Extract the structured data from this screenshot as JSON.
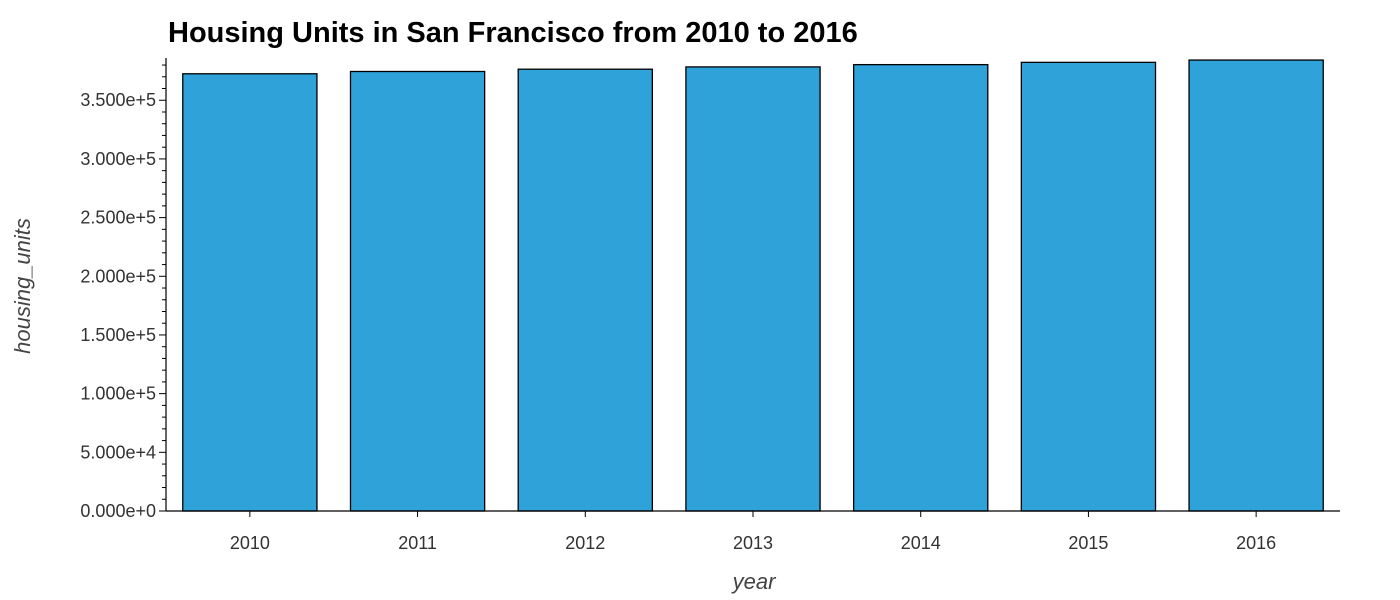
{
  "chart_data": {
    "type": "bar",
    "title": "Housing Units in San Francisco from 2010 to 2016",
    "xlabel": "year",
    "ylabel": "housing_units",
    "categories": [
      "2010",
      "2011",
      "2012",
      "2013",
      "2014",
      "2015",
      "2016"
    ],
    "values": [
      372560,
      374507,
      376454,
      378401,
      380348,
      382295,
      384242
    ],
    "ylim": [
      0,
      386000
    ],
    "yticks": [
      0,
      50000,
      100000,
      150000,
      200000,
      250000,
      300000,
      350000
    ],
    "ytick_labels": [
      "0.000e+0",
      "5.000e+4",
      "1.000e+5",
      "1.500e+5",
      "2.000e+5",
      "2.500e+5",
      "3.000e+5",
      "3.500e+5"
    ],
    "minor_tick_step": 10000,
    "bar_color": "#30a2da",
    "bar_edge_color": "#000000",
    "grid": false,
    "legend": "none"
  }
}
